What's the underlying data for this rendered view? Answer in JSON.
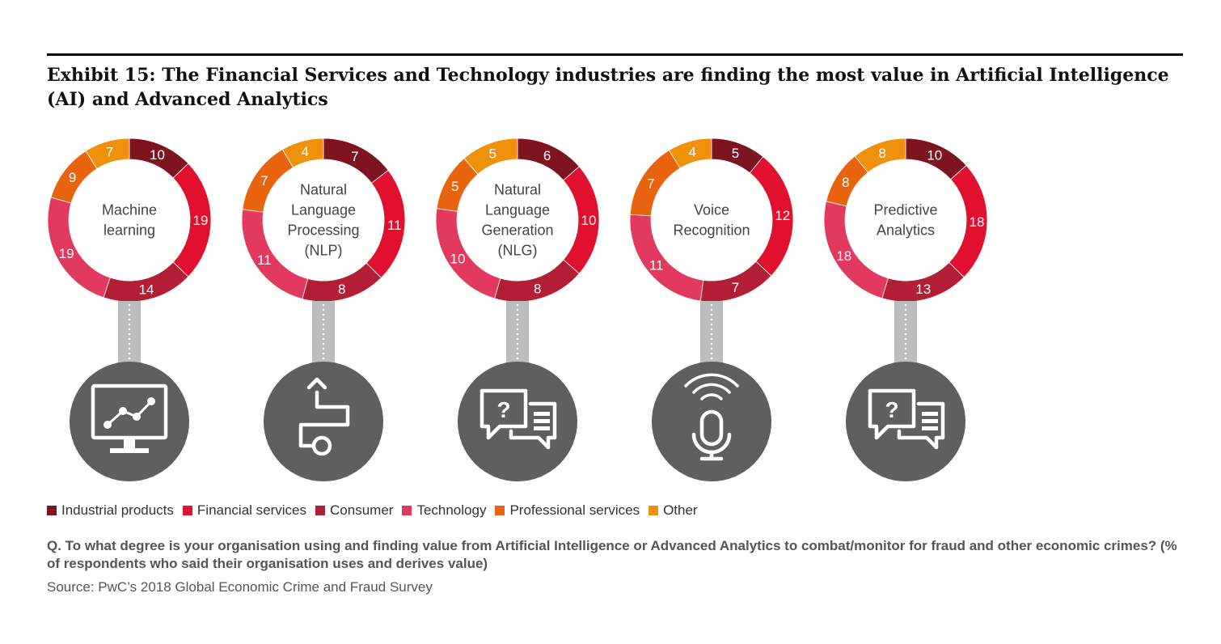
{
  "title": "Exhibit 15: The Financial Services and Technology industries are finding the most value in Artificial Intelligence (AI) and Advanced Analytics",
  "legend": [
    {
      "label": "Industrial products",
      "color": "#7d1420"
    },
    {
      "label": "Financial services",
      "color": "#e0102e"
    },
    {
      "label": "Consumer",
      "color": "#b21e33"
    },
    {
      "label": "Technology",
      "color": "#e23a5f"
    },
    {
      "label": "Professional services",
      "color": "#e8640f"
    },
    {
      "label": "Other",
      "color": "#f0910b"
    }
  ],
  "question": "Q. To what degree is your organisation using and finding value from Artificial Intelligence or Advanced Analytics to combat/monitor for fraud and other economic crimes? (% of respondents who said their organisation uses and derives value)",
  "source": "Source: PwC’s 2018 Global Economic Crime and Fraud Survey",
  "chart_data": [
    {
      "type": "pie",
      "center_label": [
        "Machine",
        "learning"
      ],
      "icon": "monitor-line-chart-icon",
      "categories": [
        "Industrial products",
        "Financial services",
        "Consumer",
        "Technology",
        "Professional services",
        "Other"
      ],
      "values": [
        10,
        19,
        14,
        19,
        9,
        7
      ]
    },
    {
      "type": "pie",
      "center_label": [
        "Natural",
        "Language",
        "Processing",
        "(NLP)"
      ],
      "icon": "flow-path-icon",
      "categories": [
        "Industrial products",
        "Financial services",
        "Consumer",
        "Technology",
        "Professional services",
        "Other"
      ],
      "values": [
        7,
        11,
        8,
        11,
        7,
        4
      ]
    },
    {
      "type": "pie",
      "center_label": [
        "Natural",
        "Language",
        "Generation",
        "(NLG)"
      ],
      "icon": "speech-bubbles-icon",
      "categories": [
        "Industrial products",
        "Financial services",
        "Consumer",
        "Technology",
        "Professional services",
        "Other"
      ],
      "values": [
        6,
        10,
        8,
        10,
        5,
        5
      ]
    },
    {
      "type": "pie",
      "center_label": [
        "Voice",
        "Recognition"
      ],
      "icon": "microphone-icon",
      "categories": [
        "Industrial products",
        "Financial services",
        "Consumer",
        "Technology",
        "Professional services",
        "Other"
      ],
      "values": [
        5,
        12,
        7,
        11,
        7,
        4
      ]
    },
    {
      "type": "pie",
      "center_label": [
        "Predictive",
        "Analytics"
      ],
      "icon": "speech-bubbles-icon",
      "categories": [
        "Industrial products",
        "Financial services",
        "Consumer",
        "Technology",
        "Professional services",
        "Other"
      ],
      "values": [
        10,
        18,
        13,
        18,
        8,
        8
      ]
    }
  ]
}
